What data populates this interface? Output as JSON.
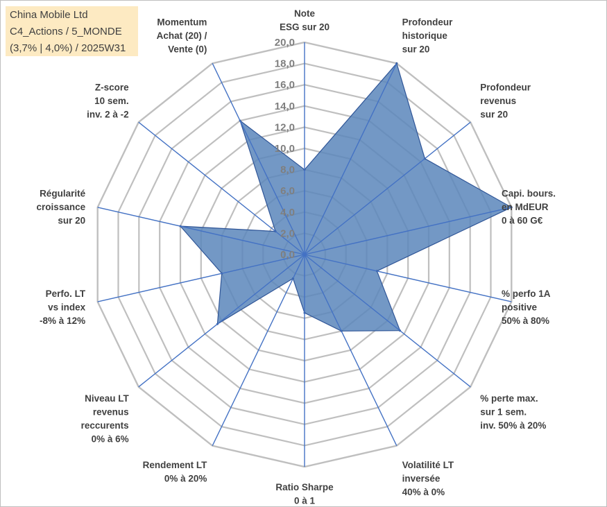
{
  "info_box": {
    "line1": "China Mobile Ltd",
    "line2": "C4_Actions / 5_MONDE",
    "line3": "(3,7% | 4,0%) / 2025W31"
  },
  "colors": {
    "fill": "#5b86bb",
    "stroke": "#2f5597",
    "grid": "#bfbfbf",
    "spoke": "#4472c4",
    "info_bg": "#fdeac2"
  },
  "chart_data": {
    "type": "radar",
    "rmin": 0,
    "rmax": 20,
    "tick_step": 2,
    "tick_labels": [
      "0,0",
      "2,0",
      "4,0",
      "6,0",
      "8,0",
      "10,0",
      "12,0",
      "14,0",
      "16,0",
      "18,0",
      "20,0"
    ],
    "axes": [
      [
        "Note",
        "ESG sur 20"
      ],
      [
        "Profondeur",
        "historique",
        "sur 20"
      ],
      [
        "Profondeur",
        "revenus",
        "sur 20"
      ],
      [
        "Capi. bours.",
        "en MdEUR",
        "0 à 60 G€"
      ],
      [
        "% perfo 1A",
        "positive",
        "50% à 80%"
      ],
      [
        "% perte max.",
        "sur 1 sem.",
        "inv. 50% à 20%"
      ],
      [
        "Volatilité LT",
        "inversée",
        "40% à 0%"
      ],
      [
        "Ratio Sharpe",
        "0 à 1"
      ],
      [
        "Rendement LT",
        "0% à 20%"
      ],
      [
        "Niveau LT",
        "revenus",
        "reccurents",
        "0% à 6%"
      ],
      [
        "Perfo. LT",
        "vs index",
        "-8% à 12%"
      ],
      [
        "Régularité",
        "croissance",
        "sur 20"
      ],
      [
        "Z-score",
        "10 sem.",
        "inv. 2 à -2"
      ],
      [
        "Momentum",
        "Achat (20) /",
        "Vente (0)"
      ]
    ],
    "series": [
      {
        "values": [
          8.0,
          20.0,
          14.5,
          20.0,
          7.0,
          11.5,
          8.0,
          5.5,
          2.5,
          10.5,
          8.0,
          12.0,
          3.5,
          14.0
        ]
      }
    ]
  }
}
